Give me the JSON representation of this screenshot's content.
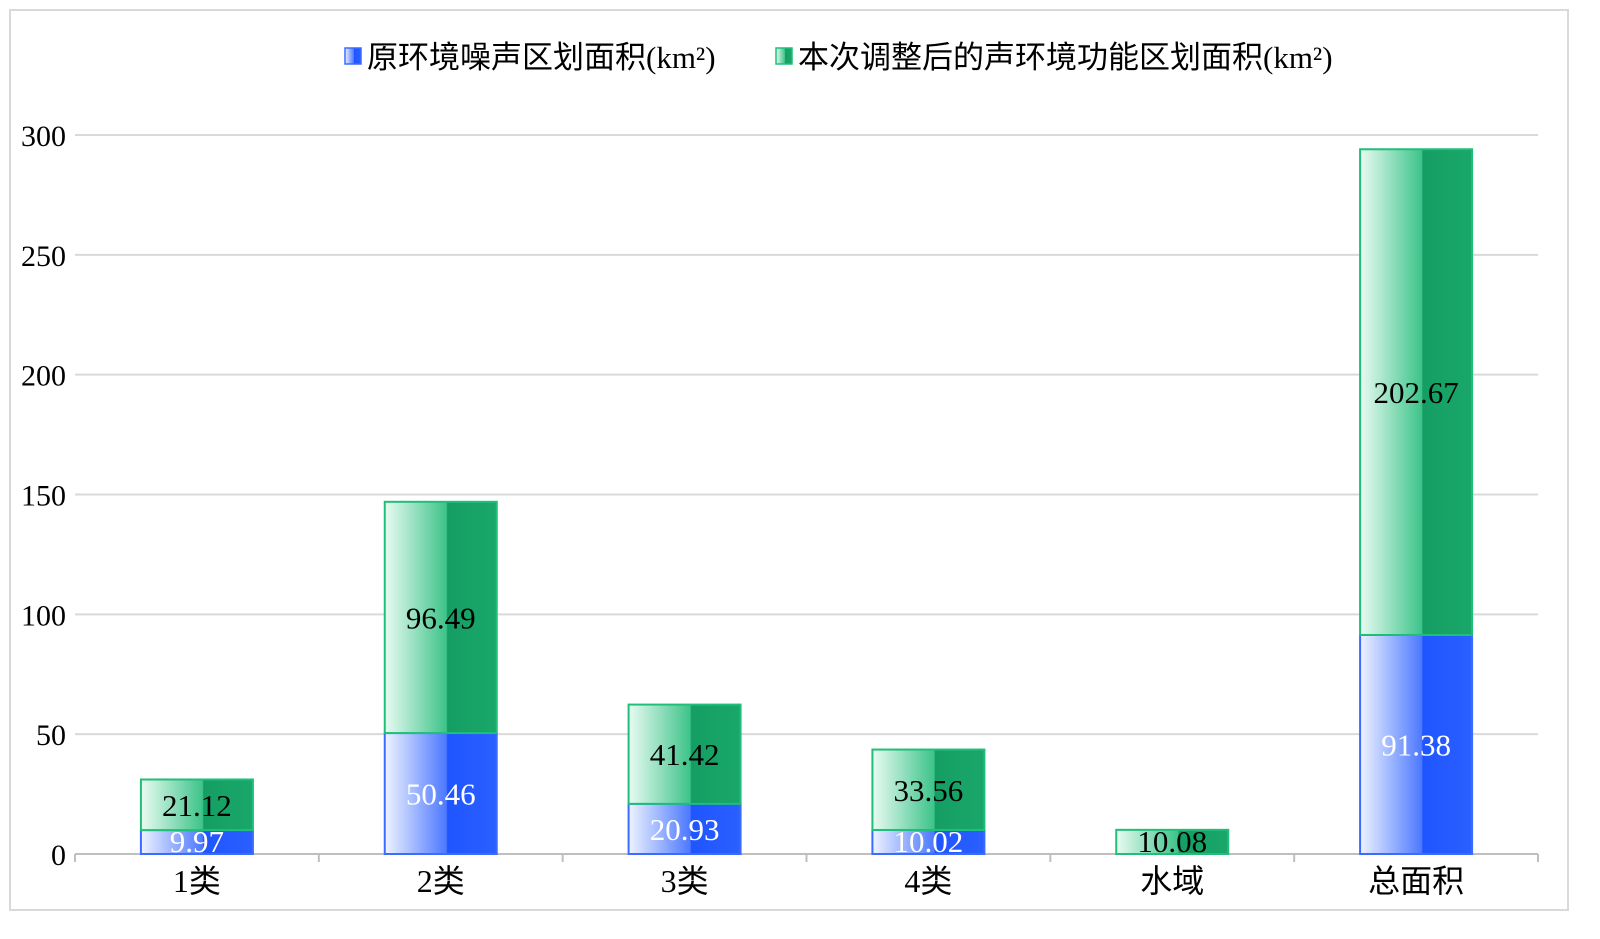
{
  "chart_data": {
    "type": "bar",
    "stacked": true,
    "title": "",
    "xlabel": "",
    "ylabel": "",
    "categories": [
      "1类",
      "2类",
      "3类",
      "4类",
      "水域",
      "总面积"
    ],
    "series": [
      {
        "name": "原环境噪声区划面积(km²)",
        "color": "#1f55ff",
        "values": [
          9.97,
          50.46,
          20.93,
          10.02,
          0,
          91.38
        ],
        "labels": [
          "9.97",
          "50.46",
          "20.93",
          "10.02",
          "",
          "91.38"
        ]
      },
      {
        "name": "本次调整后的声环境功能区划面积(km²)",
        "color": "#159e63",
        "values": [
          21.12,
          96.49,
          41.42,
          33.56,
          10.08,
          202.67
        ],
        "labels": [
          "21.12",
          "96.49",
          "41.42",
          "33.56",
          "10.08",
          "202.67"
        ]
      }
    ],
    "ylim": [
      0,
      300
    ],
    "yticks": [
      "0",
      "50",
      "100",
      "150",
      "200",
      "250",
      "300"
    ],
    "grid": true,
    "legend_position": "top"
  }
}
